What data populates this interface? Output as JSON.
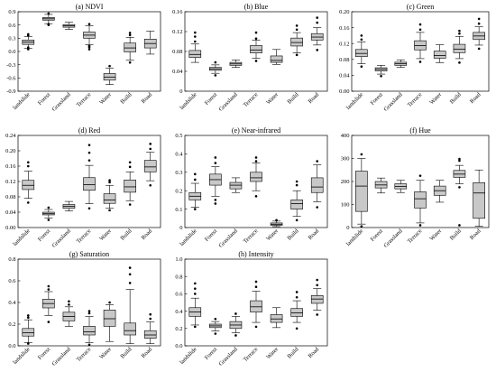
{
  "chart_data": [
    {
      "type": "boxplot",
      "title": "(a) NDVI",
      "categories": [
        "landslide",
        "Forest",
        "Grassland",
        "Terrace",
        "Water",
        "Build",
        "Road"
      ],
      "ylim": [
        -0.9,
        0.9
      ],
      "yticks": [
        "-0.9",
        "-0.6",
        "-0.3",
        "0.0",
        "0.3",
        "0.6",
        "0.9"
      ],
      "ytick_values": [
        -0.9,
        -0.6,
        -0.3,
        0.0,
        0.3,
        0.6,
        0.9
      ],
      "boxes": [
        {
          "q1": 0.16,
          "median": 0.21,
          "q3": 0.26,
          "whisker_low": 0.07,
          "whisker_high": 0.34,
          "outliers": [
            0.05,
            0.09,
            0.36,
            0.39
          ]
        },
        {
          "q1": 0.71,
          "median": 0.74,
          "q3": 0.77,
          "whisker_low": 0.63,
          "whisker_high": 0.84,
          "outliers": [
            0.6,
            0.62,
            0.86
          ]
        },
        {
          "q1": 0.55,
          "median": 0.58,
          "q3": 0.61,
          "whisker_low": 0.5,
          "whisker_high": 0.66,
          "outliers": []
        },
        {
          "q1": 0.3,
          "median": 0.37,
          "q3": 0.44,
          "whisker_low": 0.15,
          "whisker_high": 0.58,
          "outliers": [
            0.05,
            0.1,
            0.13,
            0.62
          ]
        },
        {
          "q1": -0.65,
          "median": -0.58,
          "q3": -0.5,
          "whisker_low": -0.75,
          "whisker_high": -0.38,
          "outliers": [
            -0.33
          ]
        },
        {
          "q1": -0.01,
          "median": 0.08,
          "q3": 0.19,
          "whisker_low": -0.2,
          "whisker_high": 0.32,
          "outliers": [
            -0.25,
            0.37,
            0.42
          ]
        },
        {
          "q1": 0.08,
          "median": 0.18,
          "q3": 0.28,
          "whisker_low": -0.06,
          "whisker_high": 0.46,
          "outliers": []
        }
      ]
    },
    {
      "type": "boxplot",
      "title": "(b) Blue",
      "categories": [
        "landslide",
        "Forest",
        "Grassland",
        "Terrace",
        "Water",
        "Build",
        "Road"
      ],
      "ylim": [
        0,
        0.16
      ],
      "yticks": [
        "0",
        "0.04",
        "0.08",
        "0.12",
        "0.16"
      ],
      "ytick_values": [
        0,
        0.04,
        0.08,
        0.12,
        0.16
      ],
      "boxes": [
        {
          "q1": 0.068,
          "median": 0.074,
          "q3": 0.082,
          "whisker_low": 0.058,
          "whisker_high": 0.095,
          "outliers": [
            0.1,
            0.11,
            0.118
          ]
        },
        {
          "q1": 0.042,
          "median": 0.045,
          "q3": 0.048,
          "whisker_low": 0.036,
          "whisker_high": 0.053,
          "outliers": [
            0.032,
            0.058
          ]
        },
        {
          "q1": 0.052,
          "median": 0.055,
          "q3": 0.058,
          "whisker_low": 0.048,
          "whisker_high": 0.063,
          "outliers": []
        },
        {
          "q1": 0.077,
          "median": 0.083,
          "q3": 0.092,
          "whisker_low": 0.066,
          "whisker_high": 0.103,
          "outliers": [
            0.061,
            0.106,
            0.118
          ]
        },
        {
          "q1": 0.058,
          "median": 0.062,
          "q3": 0.071,
          "whisker_low": 0.054,
          "whisker_high": 0.084,
          "outliers": []
        },
        {
          "q1": 0.091,
          "median": 0.098,
          "q3": 0.107,
          "whisker_low": 0.077,
          "whisker_high": 0.118,
          "outliers": [
            0.073,
            0.124,
            0.132
          ]
        },
        {
          "q1": 0.103,
          "median": 0.109,
          "q3": 0.116,
          "whisker_low": 0.093,
          "whisker_high": 0.128,
          "outliers": [
            0.083,
            0.138,
            0.148
          ]
        }
      ]
    },
    {
      "type": "boxplot",
      "title": "(c) Green",
      "categories": [
        "landslide",
        "Forest",
        "Grassland",
        "Terrace",
        "Water",
        "Build",
        "Road"
      ],
      "ylim": [
        0,
        0.2
      ],
      "yticks": [
        "0.00",
        "0.04",
        "0.08",
        "0.12",
        "0.16",
        "0.20"
      ],
      "ytick_values": [
        0,
        0.04,
        0.08,
        0.12,
        0.16,
        0.2
      ],
      "boxes": [
        {
          "q1": 0.087,
          "median": 0.095,
          "q3": 0.105,
          "whisker_low": 0.069,
          "whisker_high": 0.124,
          "outliers": [
            0.062,
            0.13,
            0.14
          ]
        },
        {
          "q1": 0.051,
          "median": 0.055,
          "q3": 0.059,
          "whisker_low": 0.043,
          "whisker_high": 0.065,
          "outliers": [
            0.038
          ]
        },
        {
          "q1": 0.065,
          "median": 0.069,
          "q3": 0.073,
          "whisker_low": 0.06,
          "whisker_high": 0.079,
          "outliers": []
        },
        {
          "q1": 0.104,
          "median": 0.115,
          "q3": 0.127,
          "whisker_low": 0.082,
          "whisker_high": 0.148,
          "outliers": [
            0.074,
            0.155,
            0.168
          ]
        },
        {
          "q1": 0.083,
          "median": 0.09,
          "q3": 0.101,
          "whisker_low": 0.072,
          "whisker_high": 0.117,
          "outliers": []
        },
        {
          "q1": 0.097,
          "median": 0.106,
          "q3": 0.118,
          "whisker_low": 0.082,
          "whisker_high": 0.138,
          "outliers": [
            0.072,
            0.145,
            0.152
          ]
        },
        {
          "q1": 0.13,
          "median": 0.139,
          "q3": 0.148,
          "whisker_low": 0.116,
          "whisker_high": 0.162,
          "outliers": [
            0.107,
            0.17,
            0.182
          ]
        }
      ]
    },
    {
      "type": "boxplot",
      "title": "(d) Red",
      "categories": [
        "landslide",
        "Forest",
        "Grassland",
        "Terrace",
        "Water",
        "Build",
        "Road"
      ],
      "ylim": [
        0,
        0.24
      ],
      "yticks": [
        "0.00",
        "0.04",
        "0.08",
        "0.12",
        "0.16",
        "0.20",
        "0.24"
      ],
      "ytick_values": [
        0,
        0.04,
        0.08,
        0.12,
        0.16,
        0.2,
        0.24
      ],
      "boxes": [
        {
          "q1": 0.099,
          "median": 0.11,
          "q3": 0.123,
          "whisker_low": 0.076,
          "whisker_high": 0.147,
          "outliers": [
            0.065,
            0.16,
            0.17
          ]
        },
        {
          "q1": 0.033,
          "median": 0.036,
          "q3": 0.04,
          "whisker_low": 0.025,
          "whisker_high": 0.047,
          "outliers": [
            0.02,
            0.052
          ]
        },
        {
          "q1": 0.05,
          "median": 0.055,
          "q3": 0.06,
          "whisker_low": 0.043,
          "whisker_high": 0.068,
          "outliers": []
        },
        {
          "q1": 0.097,
          "median": 0.112,
          "q3": 0.13,
          "whisker_low": 0.062,
          "whisker_high": 0.162,
          "outliers": [
            0.05,
            0.175,
            0.195,
            0.215
          ]
        },
        {
          "q1": 0.063,
          "median": 0.072,
          "q3": 0.088,
          "whisker_low": 0.05,
          "whisker_high": 0.11,
          "outliers": [
            0.045,
            0.118,
            0.123
          ]
        },
        {
          "q1": 0.092,
          "median": 0.106,
          "q3": 0.124,
          "whisker_low": 0.07,
          "whisker_high": 0.145,
          "outliers": [
            0.06,
            0.158,
            0.17
          ]
        },
        {
          "q1": 0.145,
          "median": 0.158,
          "q3": 0.175,
          "whisker_low": 0.122,
          "whisker_high": 0.196,
          "outliers": [
            0.11,
            0.205,
            0.218
          ]
        }
      ]
    },
    {
      "type": "boxplot",
      "title": "(e) Near-infrared",
      "categories": [
        "landslide",
        "Forest",
        "Grassland",
        "Terrace",
        "Water",
        "Build",
        "Road"
      ],
      "ylim": [
        0,
        0.5
      ],
      "yticks": [
        "0",
        "0.1",
        "0.2",
        "0.3",
        "0.4",
        "0.5"
      ],
      "ytick_values": [
        0,
        0.1,
        0.2,
        0.3,
        0.4,
        0.5
      ],
      "boxes": [
        {
          "q1": 0.15,
          "median": 0.17,
          "q3": 0.19,
          "whisker_low": 0.11,
          "whisker_high": 0.24,
          "outliers": [
            0.1,
            0.26,
            0.29
          ]
        },
        {
          "q1": 0.23,
          "median": 0.26,
          "q3": 0.29,
          "whisker_low": 0.17,
          "whisker_high": 0.33,
          "outliers": [
            0.13,
            0.15,
            0.35,
            0.38
          ]
        },
        {
          "q1": 0.21,
          "median": 0.23,
          "q3": 0.245,
          "whisker_low": 0.19,
          "whisker_high": 0.27,
          "outliers": []
        },
        {
          "q1": 0.25,
          "median": 0.27,
          "q3": 0.3,
          "whisker_low": 0.2,
          "whisker_high": 0.35,
          "outliers": [
            0.17,
            0.36,
            0.38
          ]
        },
        {
          "q1": 0.012,
          "median": 0.018,
          "q3": 0.025,
          "whisker_low": 0.005,
          "whisker_high": 0.035,
          "outliers": [
            0.04
          ]
        },
        {
          "q1": 0.1,
          "median": 0.13,
          "q3": 0.15,
          "whisker_low": 0.06,
          "whisker_high": 0.2,
          "outliers": [
            0.04,
            0.23,
            0.25
          ]
        },
        {
          "q1": 0.19,
          "median": 0.22,
          "q3": 0.27,
          "whisker_low": 0.14,
          "whisker_high": 0.34,
          "outliers": [
            0.11,
            0.36
          ]
        }
      ]
    },
    {
      "type": "boxplot",
      "title": "(f) Hue",
      "categories": [
        "landslide",
        "Forest",
        "Grassland",
        "Terrace",
        "Water",
        "Build",
        "Road"
      ],
      "ylim": [
        0,
        400
      ],
      "yticks": [
        "0",
        "100",
        "200",
        "300",
        "400"
      ],
      "ytick_values": [
        0,
        100,
        200,
        300,
        400
      ],
      "boxes": [
        {
          "q1": 70,
          "median": 180,
          "q3": 245,
          "whisker_low": 15,
          "whisker_high": 300,
          "outliers": [
            5,
            318
          ]
        },
        {
          "q1": 172,
          "median": 185,
          "q3": 200,
          "whisker_low": 150,
          "whisker_high": 215,
          "outliers": []
        },
        {
          "q1": 168,
          "median": 178,
          "q3": 190,
          "whisker_low": 152,
          "whisker_high": 205,
          "outliers": []
        },
        {
          "q1": 85,
          "median": 125,
          "q3": 155,
          "whisker_low": 20,
          "whisker_high": 205,
          "outliers": [
            10,
            225
          ]
        },
        {
          "q1": 140,
          "median": 160,
          "q3": 180,
          "whisker_low": 110,
          "whisker_high": 205,
          "outliers": []
        },
        {
          "q1": 218,
          "median": 232,
          "q3": 248,
          "whisker_low": 190,
          "whisker_high": 270,
          "outliers": [
            10,
            175,
            290,
            298
          ]
        },
        {
          "q1": 40,
          "median": 150,
          "q3": 195,
          "whisker_low": 5,
          "whisker_high": 250,
          "outliers": []
        }
      ]
    },
    {
      "type": "boxplot",
      "title": "(g) Saturation",
      "categories": [
        "landslide",
        "Forest",
        "Grassland",
        "Terrace",
        "Water",
        "Build",
        "Road"
      ],
      "ylim": [
        0,
        0.8
      ],
      "yticks": [
        "0.0",
        "0.2",
        "0.4",
        "0.6",
        "0.8"
      ],
      "ytick_values": [
        0,
        0.2,
        0.4,
        0.6,
        0.8
      ],
      "boxes": [
        {
          "q1": 0.09,
          "median": 0.12,
          "q3": 0.16,
          "whisker_low": 0.03,
          "whisker_high": 0.24,
          "outliers": [
            0.02,
            0.26,
            0.28
          ]
        },
        {
          "q1": 0.35,
          "median": 0.39,
          "q3": 0.43,
          "whisker_low": 0.28,
          "whisker_high": 0.5,
          "outliers": [
            0.22,
            0.52,
            0.55
          ]
        },
        {
          "q1": 0.23,
          "median": 0.27,
          "q3": 0.31,
          "whisker_low": 0.18,
          "whisker_high": 0.36,
          "outliers": [
            0.38,
            0.41
          ]
        },
        {
          "q1": 0.1,
          "median": 0.13,
          "q3": 0.18,
          "whisker_low": 0.03,
          "whisker_high": 0.27,
          "outliers": [
            0.01,
            0.3,
            0.32
          ]
        },
        {
          "q1": 0.18,
          "median": 0.25,
          "q3": 0.33,
          "whisker_low": 0.04,
          "whisker_high": 0.38,
          "outliers": [
            0.4
          ]
        },
        {
          "q1": 0.1,
          "median": 0.14,
          "q3": 0.21,
          "whisker_low": 0.02,
          "whisker_high": 0.52,
          "outliers": [
            0.58,
            0.66,
            0.72
          ]
        },
        {
          "q1": 0.07,
          "median": 0.1,
          "q3": 0.14,
          "whisker_low": 0.02,
          "whisker_high": 0.22,
          "outliers": [
            0.25,
            0.29
          ]
        }
      ]
    },
    {
      "type": "boxplot",
      "title": "(h) Intensity",
      "categories": [
        "landslide",
        "Forest",
        "Grassland",
        "Terrace",
        "Water",
        "Build",
        "Road"
      ],
      "ylim": [
        0,
        1.0
      ],
      "yticks": [
        "0.0",
        "0.2",
        "0.4",
        "0.6",
        "0.8",
        "1.0"
      ],
      "ytick_values": [
        0,
        0.2,
        0.4,
        0.6,
        0.8,
        1.0
      ],
      "boxes": [
        {
          "q1": 0.34,
          "median": 0.39,
          "q3": 0.44,
          "whisker_low": 0.24,
          "whisker_high": 0.55,
          "outliers": [
            0.22,
            0.6,
            0.66,
            0.72
          ]
        },
        {
          "q1": 0.21,
          "median": 0.23,
          "q3": 0.25,
          "whisker_low": 0.17,
          "whisker_high": 0.28,
          "outliers": [
            0.14,
            0.31
          ]
        },
        {
          "q1": 0.2,
          "median": 0.24,
          "q3": 0.28,
          "whisker_low": 0.15,
          "whisker_high": 0.34,
          "outliers": [
            0.12,
            0.37
          ]
        },
        {
          "q1": 0.39,
          "median": 0.45,
          "q3": 0.52,
          "whisker_low": 0.27,
          "whisker_high": 0.63,
          "outliers": [
            0.22,
            0.68,
            0.74
          ]
        },
        {
          "q1": 0.27,
          "median": 0.31,
          "q3": 0.36,
          "whisker_low": 0.21,
          "whisker_high": 0.44,
          "outliers": []
        },
        {
          "q1": 0.34,
          "median": 0.38,
          "q3": 0.43,
          "whisker_low": 0.27,
          "whisker_high": 0.52,
          "outliers": [
            0.2,
            0.56,
            0.62
          ]
        },
        {
          "q1": 0.49,
          "median": 0.54,
          "q3": 0.58,
          "whisker_low": 0.41,
          "whisker_high": 0.66,
          "outliers": [
            0.36,
            0.7,
            0.76
          ]
        }
      ]
    }
  ],
  "style": {
    "box_fill": "#c8c8c8",
    "line_color": "#000000",
    "outlier_color": "#000000",
    "frame_color": "#000000"
  }
}
